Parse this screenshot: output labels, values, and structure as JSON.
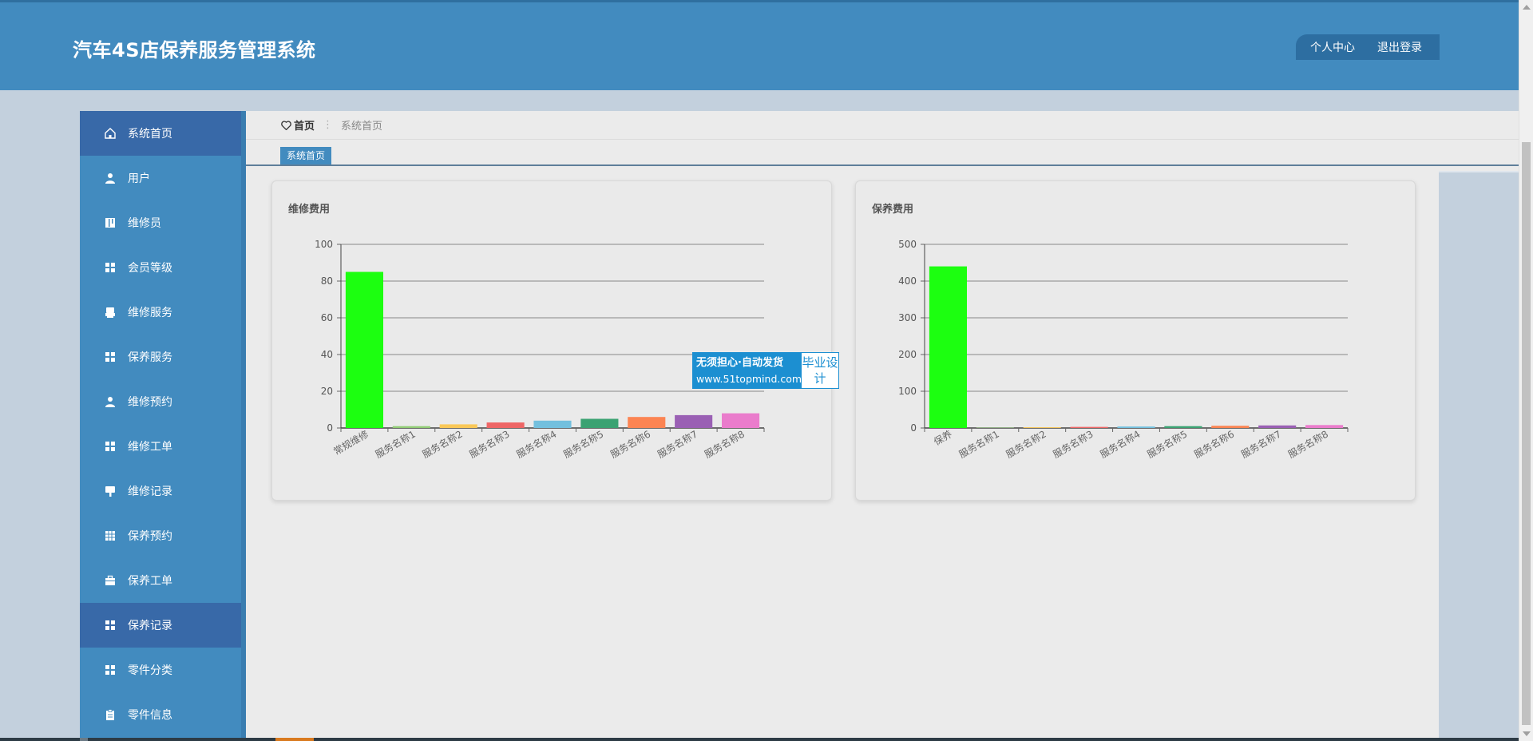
{
  "header": {
    "title": "汽车4S店保养服务管理系统",
    "links": [
      "个人中心",
      "退出登录"
    ]
  },
  "sidebar": {
    "items": [
      {
        "label": "系统首页",
        "icon": "home-icon",
        "active": true
      },
      {
        "label": "用户",
        "icon": "user-icon",
        "active": false
      },
      {
        "label": "维修员",
        "icon": "book-icon",
        "active": false
      },
      {
        "label": "会员等级",
        "icon": "grid-icon",
        "active": false
      },
      {
        "label": "维修服务",
        "icon": "printer-icon",
        "active": false
      },
      {
        "label": "保养服务",
        "icon": "grid-icon",
        "active": false
      },
      {
        "label": "维修预约",
        "icon": "user-icon",
        "active": false
      },
      {
        "label": "维修工单",
        "icon": "grid-icon",
        "active": false
      },
      {
        "label": "维修记录",
        "icon": "brush-icon",
        "active": false
      },
      {
        "label": "保养预约",
        "icon": "table-icon",
        "active": false
      },
      {
        "label": "保养工单",
        "icon": "briefcase-icon",
        "active": false
      },
      {
        "label": "保养记录",
        "icon": "grid-icon",
        "active": true
      },
      {
        "label": "零件分类",
        "icon": "grid-icon",
        "active": false
      },
      {
        "label": "零件信息",
        "icon": "clipboard-icon",
        "active": false
      }
    ]
  },
  "breadcrumb": {
    "home": "首页",
    "current": "系统首页"
  },
  "tabs": [
    {
      "label": "系统首页"
    }
  ],
  "watermark": {
    "line1": "无须担心·自动发货",
    "line2": "www.51topmind.com",
    "side": "毕业设计"
  },
  "colors": {
    "header": "#428bbf",
    "sidebar": "#428bbf",
    "sidebar_active": "#3869a8",
    "bars": [
      "#1cff10",
      "#91cc75",
      "#fac858",
      "#ee6666",
      "#73c0de",
      "#3ba272",
      "#fc8452",
      "#9a60b4",
      "#ea7ccc"
    ]
  },
  "chart_data": [
    {
      "type": "bar",
      "title": "维修费用",
      "categories": [
        "常规维修",
        "服务名称1",
        "服务名称2",
        "服务名称3",
        "服务名称4",
        "服务名称5",
        "服务名称6",
        "服务名称7",
        "服务名称8"
      ],
      "values": [
        85,
        1,
        2,
        3,
        4,
        5,
        6,
        7,
        8
      ],
      "ylim": [
        0,
        100
      ],
      "yticks": [
        0,
        20,
        40,
        60,
        80,
        100
      ],
      "grid": true
    },
    {
      "type": "bar",
      "title": "保养费用",
      "categories": [
        "保养",
        "服务名称1",
        "服务名称2",
        "服务名称3",
        "服务名称4",
        "服务名称5",
        "服务名称6",
        "服务名称7",
        "服务名称8"
      ],
      "values": [
        440,
        1,
        2,
        3,
        4,
        5,
        6,
        7,
        8
      ],
      "ylim": [
        0,
        500
      ],
      "yticks": [
        0,
        100,
        200,
        300,
        400,
        500
      ],
      "grid": true
    }
  ]
}
